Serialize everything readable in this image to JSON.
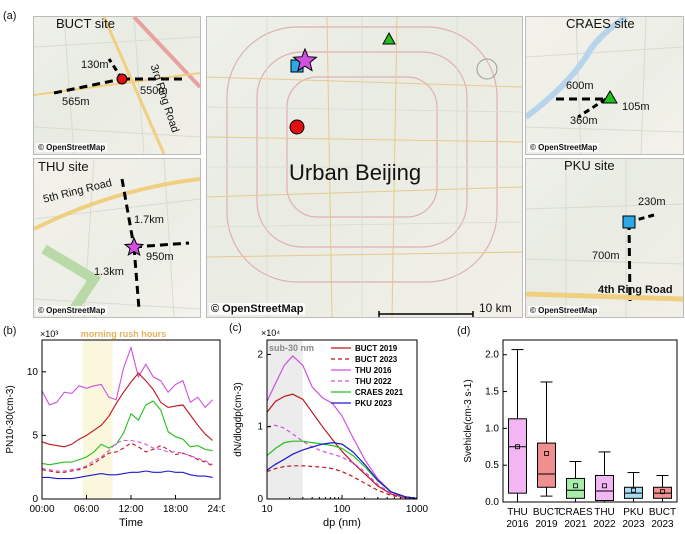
{
  "panel_labels": {
    "a": "(a)",
    "b": "(b)",
    "c": "(c)",
    "d": "(d)"
  },
  "maps": {
    "bucu": {
      "title": "BUCT site",
      "labels": [
        "130m",
        "565m",
        "550m",
        "3rd Ring Road"
      ],
      "credit": "© OpenStreetMap"
    },
    "thu": {
      "title": "THU site",
      "labels": [
        "5th Ring Road",
        "1.7km",
        "950m",
        "1.3km"
      ],
      "credit": "© OpenStreetMap"
    },
    "center": {
      "title": "Urban Beijing",
      "credit": "© OpenStreetMap",
      "scale": "10 km"
    },
    "craes": {
      "title": "CRAES site",
      "labels": [
        "600m",
        "105m",
        "360m"
      ],
      "credit": "© OpenStreetMap"
    },
    "pku": {
      "title": "PKU site",
      "labels": [
        "230m",
        "700m",
        "4th Ring Road"
      ],
      "credit": "© OpenStreetMap"
    }
  },
  "colors": {
    "BUCT 2019": "#c0141c",
    "BUCT 2023": "#c0141c",
    "THU 2016": "#d050e0",
    "THU 2022": "#d050e0",
    "CRAES 2021": "#22c01e",
    "PKU 2023": "#1a1ad0"
  },
  "chart_data": [
    {
      "type": "line",
      "panel": "(b)",
      "xlabel": "Time",
      "ylabel": "PN10-30(cm-3)",
      "y_multiplier": "×10³",
      "annotation": "morning rush hours",
      "shaded_range": [
        5.5,
        9.5
      ],
      "xlim": [
        0,
        24
      ],
      "ylim": [
        0,
        12.5
      ],
      "xticks": [
        "00:00",
        "06:00",
        "12:00",
        "18:00",
        "24:00"
      ],
      "yticks": [
        "0",
        "5",
        "10"
      ],
      "x": [
        0,
        1,
        2,
        3,
        4,
        5,
        6,
        7,
        8,
        9,
        10,
        11,
        12,
        13,
        14,
        15,
        16,
        17,
        18,
        19,
        20,
        21,
        22,
        23
      ],
      "series": [
        {
          "name": "THU 2016",
          "style": "solid",
          "values": [
            8.5,
            7.4,
            7.6,
            8.4,
            8.3,
            8.9,
            8.7,
            8.9,
            9.0,
            8.0,
            7.8,
            10.3,
            11.9,
            9.6,
            10.6,
            9.6,
            9.3,
            8.4,
            9.0,
            9.3,
            7.6,
            8.0,
            7.2,
            7.8
          ]
        },
        {
          "name": "BUCT 2019",
          "style": "solid",
          "values": [
            4.5,
            4.3,
            4.2,
            4.1,
            4.3,
            4.7,
            5.0,
            5.4,
            5.8,
            6.5,
            7.5,
            8.4,
            9.2,
            9.9,
            9.3,
            8.6,
            7.6,
            7.2,
            7.3,
            7.4,
            6.6,
            5.8,
            5.1,
            4.6
          ]
        },
        {
          "name": "CRAES 2021",
          "style": "solid",
          "values": [
            2.8,
            2.7,
            2.8,
            2.9,
            2.9,
            3.1,
            3.3,
            3.7,
            4.3,
            4.0,
            4.3,
            5.2,
            6.7,
            6.2,
            7.4,
            7.7,
            7.0,
            5.3,
            4.9,
            4.7,
            4.1,
            4.2,
            3.9,
            3.8
          ]
        },
        {
          "name": "BUCT 2023",
          "style": "dashed",
          "values": [
            2.3,
            2.2,
            2.1,
            2.1,
            2.2,
            2.3,
            2.5,
            2.8,
            3.2,
            3.6,
            3.7,
            4.0,
            4.4,
            4.1,
            3.7,
            3.9,
            4.2,
            3.9,
            3.5,
            3.6,
            3.4,
            3.1,
            2.9,
            2.6
          ]
        },
        {
          "name": "THU 2022",
          "style": "dashed",
          "values": [
            2.4,
            2.3,
            2.2,
            2.2,
            2.3,
            2.4,
            2.6,
            3.0,
            3.3,
            3.8,
            4.4,
            4.6,
            4.6,
            4.5,
            4.3,
            4.0,
            3.9,
            3.7,
            3.7,
            3.6,
            3.4,
            3.2,
            3.0,
            2.7
          ]
        },
        {
          "name": "PKU 2023",
          "style": "solid",
          "values": [
            1.7,
            1.7,
            1.6,
            1.6,
            1.6,
            1.7,
            1.8,
            1.9,
            2.0,
            1.9,
            1.9,
            2.0,
            2.1,
            2.1,
            2.2,
            2.1,
            2.1,
            2.2,
            2.1,
            2.1,
            1.9,
            1.8,
            1.8,
            1.7
          ]
        }
      ]
    },
    {
      "type": "line",
      "panel": "(c)",
      "xlabel": "dp (nm)",
      "ylabel": "dN/dlogdp(cm-3)",
      "y_multiplier": "×10⁴",
      "annotation": "sub-30 nm",
      "shaded_range": [
        10,
        30
      ],
      "xscale": "log",
      "xlim": [
        10,
        1000
      ],
      "ylim": [
        0,
        2.2
      ],
      "xticks": [
        "10",
        "100",
        "1000"
      ],
      "yticks": [
        "0",
        "1",
        "2"
      ],
      "x": [
        10,
        13,
        17,
        22,
        30,
        40,
        55,
        75,
        100,
        140,
        200,
        300,
        450,
        700,
        1000
      ],
      "series": [
        {
          "name": "BUCT 2019",
          "style": "solid",
          "values": [
            1.2,
            1.35,
            1.42,
            1.45,
            1.38,
            1.2,
            1.0,
            0.82,
            0.66,
            0.5,
            0.35,
            0.18,
            0.07,
            0.02,
            0.005
          ]
        },
        {
          "name": "BUCT 2023",
          "style": "dashed",
          "values": [
            0.38,
            0.42,
            0.45,
            0.46,
            0.46,
            0.45,
            0.44,
            0.42,
            0.38,
            0.31,
            0.22,
            0.12,
            0.05,
            0.015,
            0.004
          ]
        },
        {
          "name": "THU 2016",
          "style": "solid",
          "values": [
            1.35,
            1.6,
            1.85,
            1.98,
            1.85,
            1.55,
            1.4,
            1.32,
            1.15,
            0.85,
            0.55,
            0.28,
            0.1,
            0.03,
            0.008
          ]
        },
        {
          "name": "THU 2022",
          "style": "dashed",
          "values": [
            1.0,
            1.02,
            0.98,
            0.9,
            0.8,
            0.72,
            0.66,
            0.62,
            0.58,
            0.5,
            0.38,
            0.2,
            0.08,
            0.02,
            0.005
          ]
        },
        {
          "name": "CRAES 2021",
          "style": "solid",
          "values": [
            0.6,
            0.7,
            0.78,
            0.8,
            0.8,
            0.78,
            0.76,
            0.74,
            0.7,
            0.6,
            0.45,
            0.25,
            0.1,
            0.03,
            0.008
          ]
        },
        {
          "name": "PKU 2023",
          "style": "solid",
          "values": [
            0.4,
            0.48,
            0.55,
            0.62,
            0.68,
            0.72,
            0.76,
            0.78,
            0.76,
            0.65,
            0.48,
            0.26,
            0.1,
            0.03,
            0.008
          ]
        }
      ]
    },
    {
      "type": "box",
      "panel": "(d)",
      "ylabel": "Svehicle(cm-3 s-1)",
      "ylim": [
        0,
        2.2
      ],
      "yticks": [
        "0.0",
        "0.5",
        "1.0",
        "1.5",
        "2.0"
      ],
      "categories": [
        "THU\n2016",
        "BUCT\n2019",
        "CRAES\n2021",
        "THU\n2022",
        "PKU\n2023",
        "BUCT\n2023"
      ],
      "boxes": [
        {
          "min": 0.0,
          "q1": 0.12,
          "median": 0.75,
          "q3": 1.13,
          "max": 2.07,
          "mean": 0.75,
          "color": "#f2b6f2"
        },
        {
          "min": 0.08,
          "q1": 0.2,
          "median": 0.38,
          "q3": 0.8,
          "max": 1.63,
          "mean": 0.66,
          "color": "#ef8f8f"
        },
        {
          "min": 0.0,
          "q1": 0.05,
          "median": 0.16,
          "q3": 0.32,
          "max": 0.55,
          "mean": 0.22,
          "color": "#a8ecaa"
        },
        {
          "min": 0.0,
          "q1": 0.02,
          "median": 0.15,
          "q3": 0.36,
          "max": 0.68,
          "mean": 0.22,
          "color": "#f2b6f2"
        },
        {
          "min": 0.0,
          "q1": 0.05,
          "median": 0.12,
          "q3": 0.2,
          "max": 0.4,
          "mean": 0.16,
          "color": "#a9dcf3"
        },
        {
          "min": 0.0,
          "q1": 0.05,
          "median": 0.12,
          "q3": 0.2,
          "max": 0.36,
          "mean": 0.14,
          "color": "#ef8f8f"
        }
      ]
    }
  ]
}
